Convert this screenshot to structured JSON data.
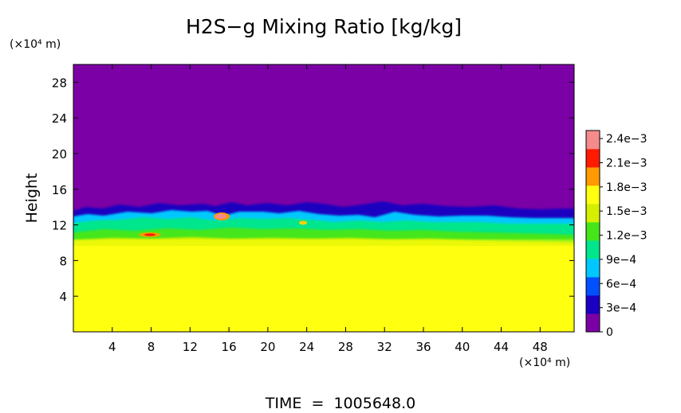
{
  "chart_data": {
    "type": "heatmap",
    "title": "H2S−g Mixing Ratio [kg/kg]",
    "ylabel": "Height",
    "y_unit": "(×10⁴ m)",
    "x_unit": "(×10⁴ m)",
    "footer": "TIME  =  1005648.0",
    "xlim": [
      0,
      51.5
    ],
    "ylim": [
      0,
      30
    ],
    "x_ticks": [
      4,
      8,
      12,
      16,
      20,
      24,
      28,
      32,
      36,
      40,
      44,
      48
    ],
    "x_tick_labels": [
      "4",
      "8",
      "12",
      "16",
      "20",
      "24",
      "28",
      "32",
      "36",
      "40",
      "44",
      "48"
    ],
    "y_ticks": [
      4,
      8,
      12,
      16,
      20,
      24,
      28
    ],
    "y_tick_labels": [
      "4",
      "8",
      "12",
      "16",
      "20",
      "24",
      "28"
    ],
    "colorbar": {
      "min": 0,
      "max": 0.0025,
      "tick_values": [
        0,
        0.0003,
        0.0006,
        0.0009,
        0.0012,
        0.0015,
        0.0018,
        0.0021,
        0.0024
      ],
      "tick_labels": [
        "0",
        "3e−4",
        "6e−4",
        "9e−4",
        "1.2e−3",
        "1.5e−3",
        "1.8e−3",
        "2.1e−3",
        "2.4e−3"
      ],
      "colors": [
        "#7b00a6",
        "#1a00c0",
        "#0050ff",
        "#00c8ff",
        "#00e68c",
        "#44e61a",
        "#d4f000",
        "#ffff10",
        "#ff9a00",
        "#ff1a00",
        "#f58b8b"
      ]
    },
    "fields": {
      "upper_layer_value": 0,
      "lower_layer_value": 0.00185,
      "interface_height_approx": 13.3
    }
  }
}
